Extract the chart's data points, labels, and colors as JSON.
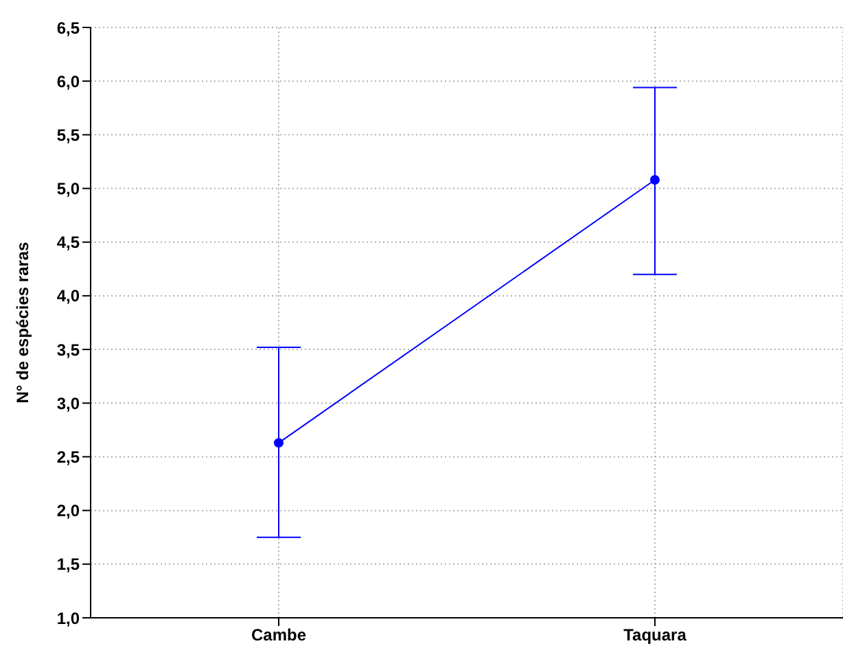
{
  "chart_data": {
    "type": "line",
    "ylabel": "N° de espécies raras",
    "categories": [
      "Cambe",
      "Taquara"
    ],
    "series": [
      {
        "color": "#0000ff",
        "values": [
          2.63,
          5.08
        ],
        "errors": [
          [
            1.75,
            3.52
          ],
          [
            4.2,
            5.94
          ]
        ]
      }
    ],
    "ylim": [
      1.0,
      6.5
    ],
    "yticks": [
      {
        "value": 1.0,
        "label": "1,0"
      },
      {
        "value": 1.5,
        "label": "1,5"
      },
      {
        "value": 2.0,
        "label": "2,0"
      },
      {
        "value": 2.5,
        "label": "2,5"
      },
      {
        "value": 3.0,
        "label": "3,0"
      },
      {
        "value": 3.5,
        "label": "3,5"
      },
      {
        "value": 4.0,
        "label": "4,0"
      },
      {
        "value": 4.5,
        "label": "4,5"
      },
      {
        "value": 5.0,
        "label": "5,0"
      },
      {
        "value": 5.5,
        "label": "5,5"
      },
      {
        "value": 6.0,
        "label": "6,0"
      },
      {
        "value": 6.5,
        "label": "6,5"
      }
    ],
    "grid": true,
    "marker": "circle",
    "line_style": "solid"
  }
}
